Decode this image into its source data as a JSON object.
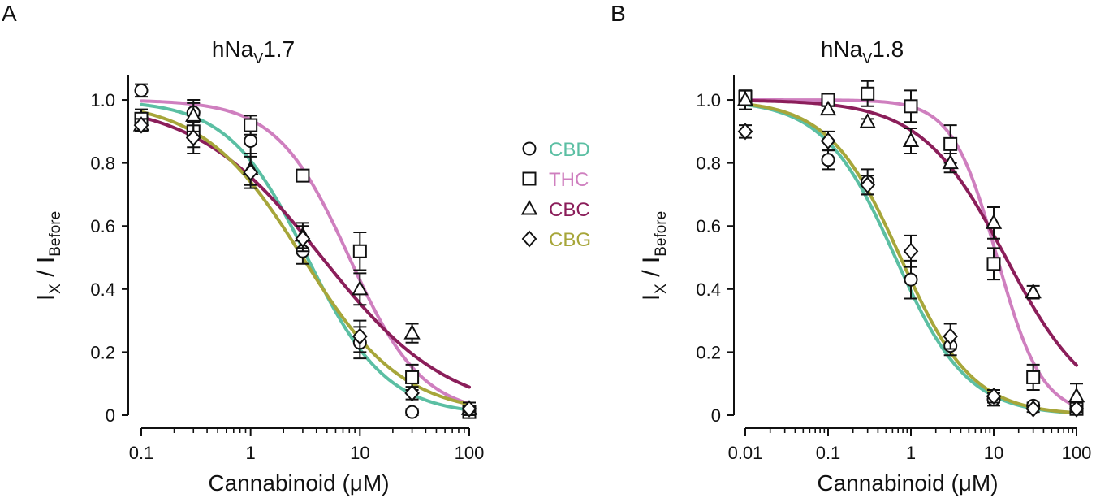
{
  "chart_data": [
    {
      "type": "scatter",
      "panel_label": "A",
      "title": {
        "prefix": "hNa",
        "sub": "V",
        "suffix": "1.7"
      },
      "xlabel": "Cannabinoid (μM)",
      "ylabel": {
        "a": "I",
        "a_sub": "X",
        "mid": " / I",
        "b_sub": "Before"
      },
      "xscale": "log",
      "xlim": [
        0.1,
        100
      ],
      "ylim": [
        0,
        1.08
      ],
      "xticks": [
        0.1,
        1,
        10,
        100
      ],
      "xtick_labels": [
        "0.1",
        "1",
        "10",
        "100"
      ],
      "yticks": [
        0,
        0.2,
        0.4,
        0.6,
        0.8,
        1.0
      ],
      "ytick_labels": [
        "0",
        "0.2",
        "0.4",
        "0.6",
        "0.8",
        "1.0"
      ],
      "grid": false,
      "series": [
        {
          "name": "CBD",
          "marker": "circle",
          "color": "#5bbfa3",
          "ic50": 3.3,
          "hill": 1.2,
          "x": [
            0.1,
            0.3,
            1,
            3,
            10,
            30,
            100
          ],
          "y": [
            1.03,
            0.96,
            0.87,
            0.52,
            0.23,
            0.01,
            0.01
          ],
          "err": [
            0.02,
            0.03,
            0.04,
            0.04,
            0.05,
            0.01,
            0.01
          ]
        },
        {
          "name": "THC",
          "marker": "square",
          "color": "#cf7fbf",
          "ic50": 8.0,
          "hill": 1.3,
          "x": [
            0.1,
            0.3,
            1,
            3,
            10,
            30,
            100
          ],
          "y": [
            0.94,
            0.9,
            0.92,
            0.76,
            0.52,
            0.12,
            0.01
          ],
          "err": [
            0.03,
            0.05,
            0.03,
            0.01,
            0.06,
            0.04,
            0.01
          ]
        },
        {
          "name": "CBC",
          "marker": "triangle",
          "color": "#8b1e5a",
          "ic50": 4.5,
          "hill": 0.75,
          "x": [
            0.1,
            0.3,
            1,
            3,
            10,
            30,
            100
          ],
          "y": [
            0.92,
            0.95,
            0.78,
            0.57,
            0.4,
            0.26,
            0.02
          ],
          "err": [
            0.02,
            0.05,
            0.05,
            0.04,
            0.05,
            0.03,
            0.02
          ]
        },
        {
          "name": "CBG",
          "marker": "diamond",
          "color": "#a7a63a",
          "ic50": 3.0,
          "hill": 0.95,
          "x": [
            0.1,
            0.3,
            1,
            3,
            10,
            30,
            100
          ],
          "y": [
            0.92,
            0.88,
            0.77,
            0.56,
            0.25,
            0.07,
            0.02
          ],
          "err": [
            0.02,
            0.05,
            0.05,
            0.04,
            0.05,
            0.02,
            0.01
          ]
        }
      ]
    },
    {
      "type": "scatter",
      "panel_label": "B",
      "title": {
        "prefix": "hNa",
        "sub": "V",
        "suffix": "1.8"
      },
      "xlabel": "Cannabinoid (μM)",
      "ylabel": {
        "a": "I",
        "a_sub": "X",
        "mid": " / I",
        "b_sub": "Before"
      },
      "xscale": "log",
      "xlim": [
        0.01,
        100
      ],
      "ylim": [
        0,
        1.08
      ],
      "xticks": [
        0.01,
        0.1,
        1,
        10,
        100
      ],
      "xtick_labels": [
        "0.01",
        "0.1",
        "1",
        "10",
        "100"
      ],
      "yticks": [
        0,
        0.2,
        0.4,
        0.6,
        0.8,
        1.0
      ],
      "ytick_labels": [
        "0",
        "0.2",
        "0.4",
        "0.6",
        "0.8",
        "1.0"
      ],
      "grid": false,
      "series": [
        {
          "name": "CBD",
          "marker": "circle",
          "color": "#5bbfa3",
          "ic50": 0.65,
          "hill": 1.0,
          "x": [
            0.01,
            0.1,
            0.3,
            1,
            3,
            10,
            30,
            100
          ],
          "y": [
            1.01,
            0.81,
            0.74,
            0.43,
            0.22,
            0.05,
            0.03,
            0.02
          ],
          "err": [
            0.02,
            0.03,
            0.04,
            0.06,
            0.03,
            0.02,
            0.01,
            0.01
          ]
        },
        {
          "name": "THC",
          "marker": "square",
          "color": "#cf7fbf",
          "ic50": 11.0,
          "hill": 1.6,
          "x": [
            0.01,
            0.1,
            0.3,
            1,
            3,
            10,
            30,
            100
          ],
          "y": [
            1.01,
            1.0,
            1.02,
            0.98,
            0.86,
            0.48,
            0.12,
            0.02
          ],
          "err": [
            0.02,
            0.01,
            0.04,
            0.05,
            0.06,
            0.05,
            0.04,
            0.01
          ]
        },
        {
          "name": "CBC",
          "marker": "triangle",
          "color": "#8b1e5a",
          "ic50": 14.0,
          "hill": 0.85,
          "x": [
            0.01,
            0.1,
            0.3,
            1,
            3,
            10,
            30,
            100
          ],
          "y": [
            1.0,
            0.97,
            0.93,
            0.87,
            0.8,
            0.61,
            0.39,
            0.06
          ],
          "err": [
            0.03,
            0.01,
            0.01,
            0.04,
            0.03,
            0.05,
            0.02,
            0.04
          ]
        },
        {
          "name": "CBG",
          "marker": "diamond",
          "color": "#a7a63a",
          "ic50": 0.75,
          "hill": 1.0,
          "x": [
            0.01,
            0.1,
            0.3,
            1,
            3,
            10,
            30,
            100
          ],
          "y": [
            0.9,
            0.87,
            0.73,
            0.52,
            0.25,
            0.06,
            0.02,
            0.02
          ],
          "err": [
            0.02,
            0.03,
            0.03,
            0.05,
            0.04,
            0.02,
            0.01,
            0.01
          ]
        }
      ]
    }
  ],
  "legend": {
    "position": "center",
    "items": [
      {
        "label": "CBD",
        "marker": "circle",
        "color": "#5bbfa3"
      },
      {
        "label": "THC",
        "marker": "square",
        "color": "#cf7fbf"
      },
      {
        "label": "CBC",
        "marker": "triangle",
        "color": "#8b1e5a"
      },
      {
        "label": "CBG",
        "marker": "diamond",
        "color": "#a7a63a"
      }
    ]
  }
}
